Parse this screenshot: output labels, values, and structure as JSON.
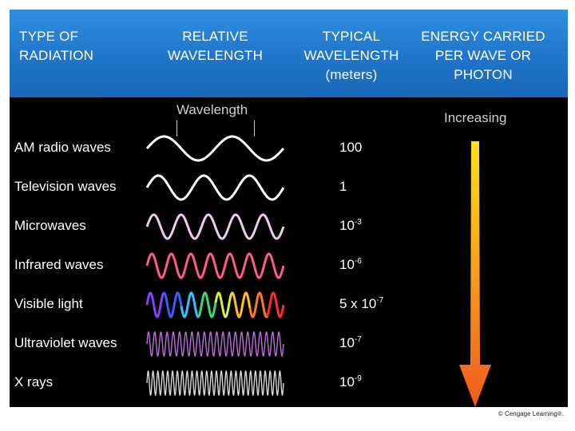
{
  "header": {
    "col1": [
      "TYPE OF",
      "RADIATION"
    ],
    "col2": [
      "RELATIVE",
      "WAVELENGTH"
    ],
    "col3": [
      "TYPICAL",
      "WAVELENGTH",
      "(meters)"
    ],
    "col4": [
      "ENERGY CARRIED",
      "PER WAVE OR",
      "PHOTON"
    ]
  },
  "wavelength_label": "Wavelength",
  "increasing_label": "Increasing",
  "rows": [
    {
      "name": "AM radio waves",
      "base": "100",
      "exp": "",
      "prefix": "",
      "cycles": 2,
      "color": "#ffffff",
      "rainbow": false
    },
    {
      "name": "Television waves",
      "base": "1",
      "exp": "",
      "prefix": "",
      "cycles": 3,
      "color": "#ffffff",
      "rainbow": false
    },
    {
      "name": "Microwaves",
      "base": "10",
      "exp": "-3",
      "prefix": "",
      "cycles": 5,
      "color": "#f0c8f0",
      "rainbow": false
    },
    {
      "name": "Infrared waves",
      "base": "10",
      "exp": "-6",
      "prefix": "",
      "cycles": 7,
      "color": "#ff5a8a",
      "rainbow": false
    },
    {
      "name": "Visible light",
      "base": "10",
      "exp": "-7",
      "prefix": "5 x ",
      "cycles": 10,
      "color": "#ffffff",
      "rainbow": true
    },
    {
      "name": "Ultraviolet waves",
      "base": "10",
      "exp": "-7",
      "prefix": "",
      "cycles": 22,
      "color": "#c06de0",
      "rainbow": false
    },
    {
      "name": "X rays",
      "base": "10",
      "exp": "-9",
      "prefix": "",
      "cycles": 28,
      "color": "#d8d8d8",
      "rainbow": false
    }
  ],
  "credit": "© Cengage Learning®.",
  "colors": {
    "header_blue": "#1f75c9",
    "arrow_top": "#ffe11a",
    "arrow_bottom": "#f05a1e"
  }
}
